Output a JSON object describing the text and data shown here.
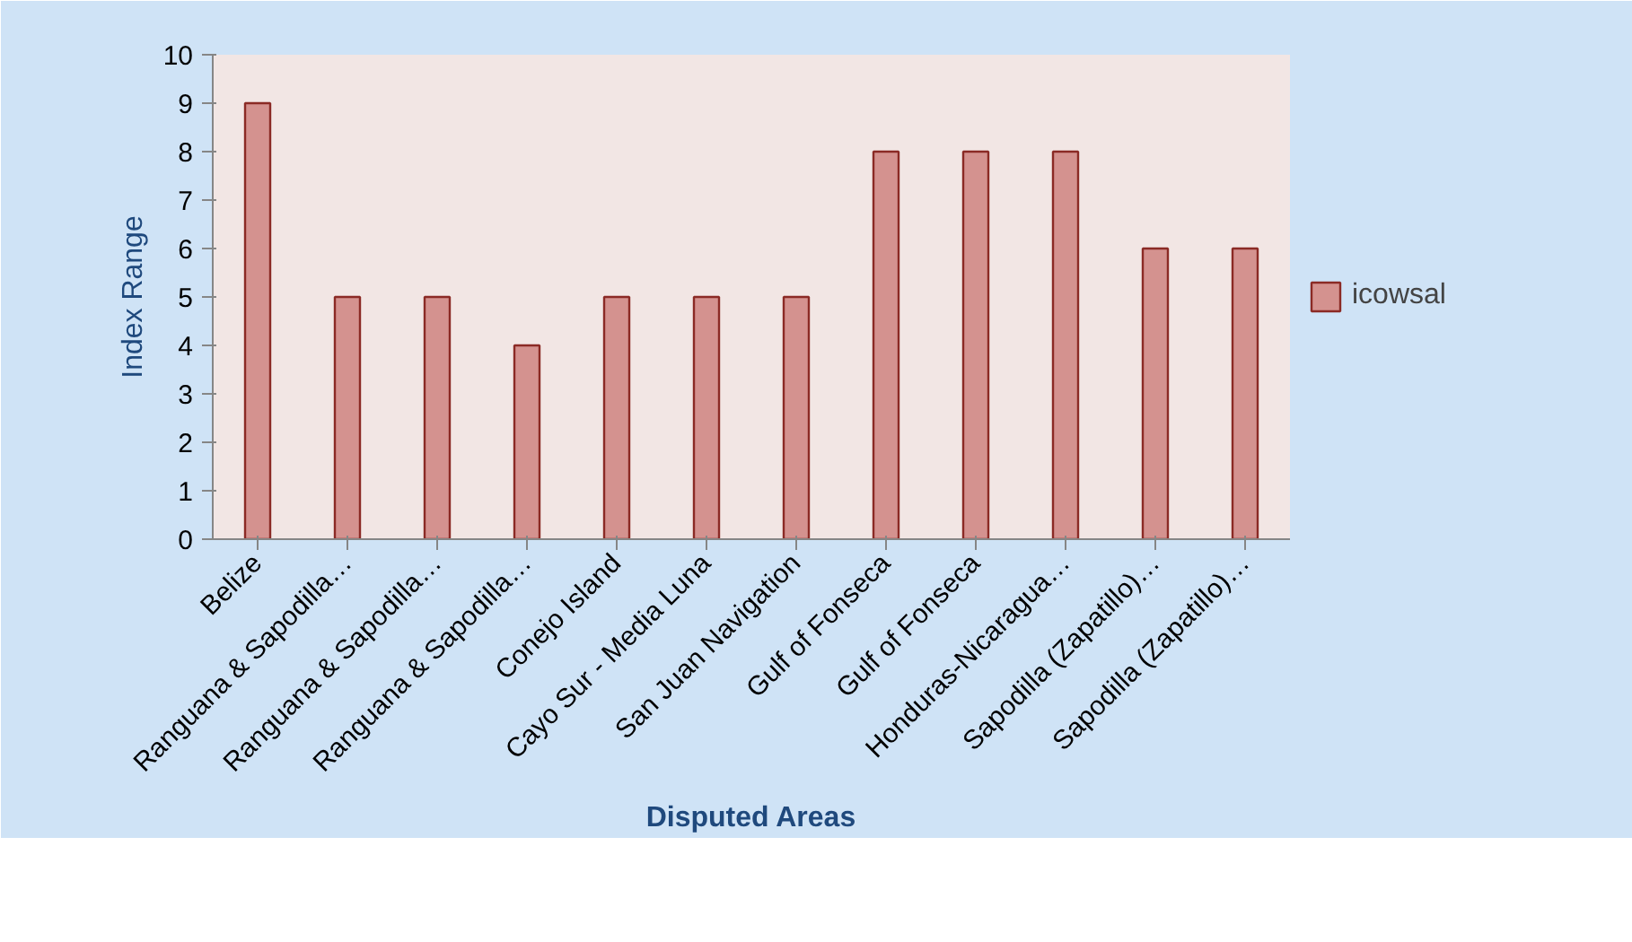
{
  "chart_data": {
    "type": "bar",
    "xlabel": "Disputed Areas",
    "ylabel": "Index Range",
    "categories": [
      "Belize",
      "Ranguana & Sapodilla…",
      "Ranguana & Sapodilla…",
      "Ranguana & Sapodilla…",
      "Conejo Island",
      "Cayo Sur - Media Luna",
      "San Juan Navigation",
      "Gulf of Fonseca",
      "Gulf of Fonseca",
      "Honduras-Nicaragua…",
      "Sapodilla (Zapatillo)…",
      "Sapodilla (Zapatillo)…"
    ],
    "series": [
      {
        "name": "icowsal",
        "color": "#d4928f",
        "values": [
          9,
          5,
          5,
          4,
          5,
          5,
          5,
          8,
          8,
          8,
          6,
          6
        ]
      }
    ],
    "ylim": [
      0,
      10
    ],
    "yticks": [
      0,
      1,
      2,
      3,
      4,
      5,
      6,
      7,
      8,
      9,
      10
    ],
    "grid": false,
    "legend": "right"
  }
}
